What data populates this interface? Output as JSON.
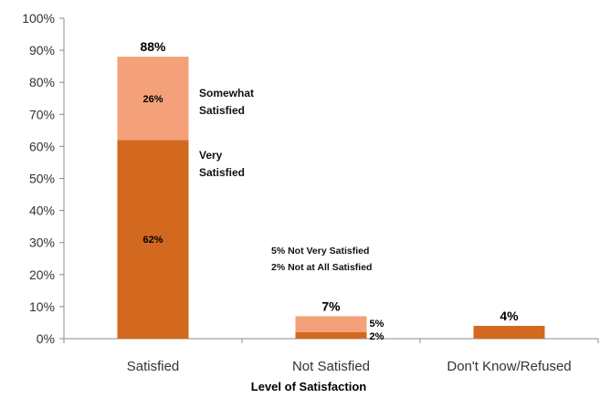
{
  "chart_data": {
    "type": "bar",
    "stacked": true,
    "xlabel": "Level of Satisfaction",
    "ylabel": "",
    "ylim": [
      0,
      100
    ],
    "y_ticks": [
      "0%",
      "10%",
      "20%",
      "30%",
      "40%",
      "50%",
      "60%",
      "70%",
      "80%",
      "90%",
      "100%"
    ],
    "categories": [
      "Satisfied",
      "Not Satisfied",
      "Don't Know/Refused"
    ],
    "grid": false,
    "legend": "none",
    "series": [
      {
        "values": [
          62,
          2,
          4
        ],
        "color": "#d2691e",
        "labels": [
          "62%",
          "2%",
          ""
        ]
      },
      {
        "values": [
          26,
          5,
          0
        ],
        "color": "#f4a17a",
        "labels": [
          "26%",
          "5%",
          ""
        ]
      }
    ],
    "totals": [
      "88%",
      "7%",
      "4%"
    ],
    "annotations": {
      "somewhat_line1": "Somewhat",
      "somewhat_line2": "Satisfied",
      "very_line1": "Very",
      "very_line2": "Satisfied",
      "not_very": "5% Not Very Satisfied",
      "not_at_all": "2% Not at All Satisfied"
    },
    "axis_color": "#8c8c8c"
  }
}
